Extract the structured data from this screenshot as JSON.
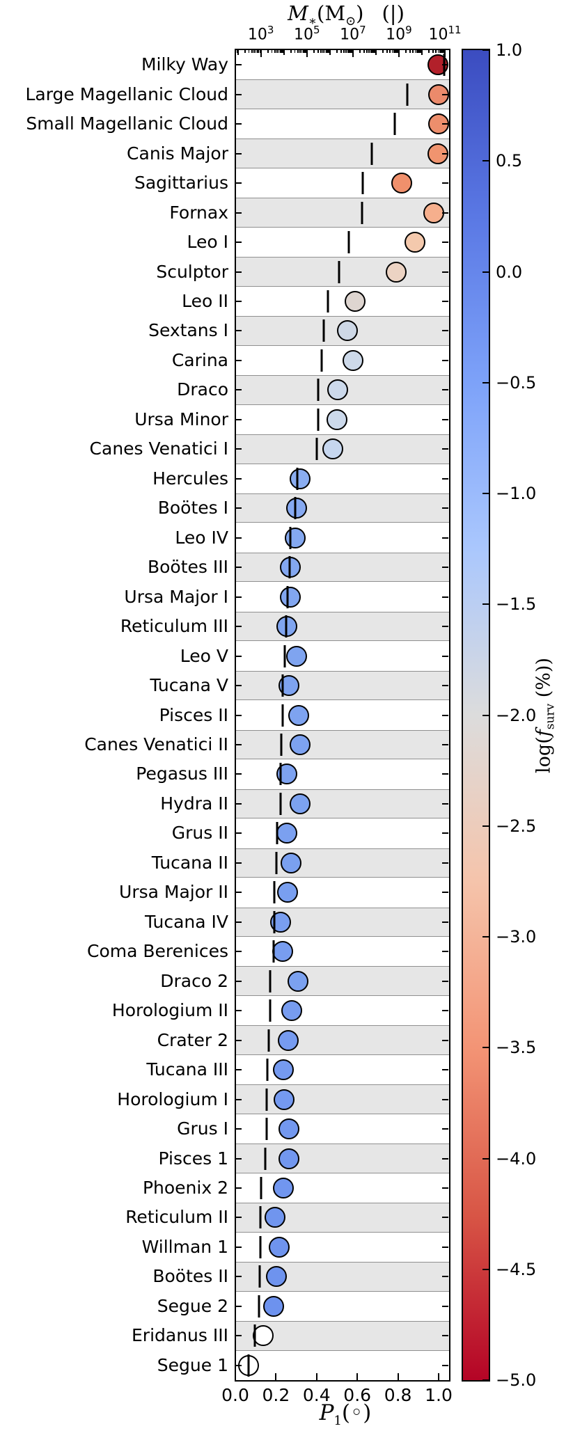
{
  "chart_data": {
    "type": "scatter",
    "description": "Horizontal category plot of 45 Milky Way satellite galaxies: vertical tick = stellar mass M* (top log axis), circle = P1 (bottom axis), circle color = log survival fraction (colorbar).",
    "x_top": {
      "title": {
        "m": "M",
        "sub": "∗",
        "open": "(M",
        "sun": "⊙",
        "close": ")",
        "legend": "(|)"
      },
      "ticks": [
        {
          "base": "10",
          "exp": "3",
          "log": 3
        },
        {
          "base": "10",
          "exp": "5",
          "log": 5
        },
        {
          "base": "10",
          "exp": "7",
          "log": 7
        },
        {
          "base": "10",
          "exp": "9",
          "log": 9
        },
        {
          "base": "10",
          "exp": "11",
          "log": 11
        }
      ],
      "range_log": [
        1.89,
        11.15
      ]
    },
    "x_bottom": {
      "title": {
        "p": "P",
        "sub": "1",
        "paren": "(◦)"
      },
      "ticks": [
        "0.0",
        "0.2",
        "0.4",
        "0.6",
        "0.8",
        "1.0"
      ],
      "range": [
        0,
        1.048
      ]
    },
    "colorbar": {
      "label": {
        "pre": "log(",
        "f": "f",
        "sub": "surv",
        "post": " (%))"
      },
      "ticks": [
        "1.0",
        "0.5",
        "0.0",
        "−0.5",
        "−1.0",
        "−1.5",
        "−2.0",
        "−2.5",
        "−3.0",
        "−3.5",
        "−4.0",
        "−4.5",
        "−5.0"
      ],
      "range": [
        1.0,
        -5.0
      ],
      "gradient": [
        "#3b4cc0",
        "#5a78e4",
        "#7da2f9",
        "#aac7fd",
        "#dcdcdc",
        "#f5c4ab",
        "#f39475",
        "#d85646",
        "#b40426"
      ]
    },
    "style": {
      "band_color": "#e6e6e6",
      "marker_edge": "#000000",
      "spine_color": "#000000"
    },
    "rows": [
      {
        "name": "Milky Way",
        "mstar_log": 10.98,
        "p1": 0.997,
        "color": "#b2202a"
      },
      {
        "name": "Large Magellanic Cloud",
        "mstar_log": 9.35,
        "p1": 1.0,
        "color": "#eb8a6b"
      },
      {
        "name": "Small Magellanic Cloud",
        "mstar_log": 8.83,
        "p1": 1.0,
        "color": "#ed8e6c"
      },
      {
        "name": "Canis Major",
        "mstar_log": 7.83,
        "p1": 0.995,
        "color": "#f0946f"
      },
      {
        "name": "Sagittarius",
        "mstar_log": 7.44,
        "p1": 0.82,
        "color": "#f0906c"
      },
      {
        "name": "Fornax",
        "mstar_log": 7.41,
        "p1": 0.975,
        "color": "#f6af8d"
      },
      {
        "name": "Leo I",
        "mstar_log": 6.83,
        "p1": 0.885,
        "color": "#f4c9ad"
      },
      {
        "name": "Sculptor",
        "mstar_log": 6.41,
        "p1": 0.79,
        "color": "#ecd3c3"
      },
      {
        "name": "Leo II",
        "mstar_log": 5.92,
        "p1": 0.59,
        "color": "#ded5d0"
      },
      {
        "name": "Sextans I",
        "mstar_log": 5.74,
        "p1": 0.55,
        "color": "#ced8e6"
      },
      {
        "name": "Carina",
        "mstar_log": 5.65,
        "p1": 0.58,
        "color": "#cdd9e9"
      },
      {
        "name": "Draco",
        "mstar_log": 5.5,
        "p1": 0.505,
        "color": "#ccd9eb"
      },
      {
        "name": "Ursa Minor",
        "mstar_log": 5.5,
        "p1": 0.5,
        "color": "#ccd9eb"
      },
      {
        "name": "Canes Venatici I",
        "mstar_log": 5.44,
        "p1": 0.48,
        "color": "#c6d6ee"
      },
      {
        "name": "Hercules",
        "mstar_log": 4.59,
        "p1": 0.32,
        "color": "#8aadf1"
      },
      {
        "name": "Boötes I",
        "mstar_log": 4.5,
        "p1": 0.3,
        "color": "#86a9f1"
      },
      {
        "name": "Leo IV",
        "mstar_log": 4.29,
        "p1": 0.295,
        "color": "#84a8f0"
      },
      {
        "name": "Boötes III",
        "mstar_log": 4.26,
        "p1": 0.27,
        "color": "#83a7f0"
      },
      {
        "name": "Ursa Major I",
        "mstar_log": 4.17,
        "p1": 0.27,
        "color": "#82a6f0"
      },
      {
        "name": "Reticulum III",
        "mstar_log": 4.11,
        "p1": 0.255,
        "color": "#80a5f0"
      },
      {
        "name": "Leo V",
        "mstar_log": 4.05,
        "p1": 0.3,
        "color": "#7fa4f0"
      },
      {
        "name": "Tucana V",
        "mstar_log": 3.95,
        "p1": 0.265,
        "color": "#7ea3f0"
      },
      {
        "name": "Pisces II",
        "mstar_log": 3.95,
        "p1": 0.31,
        "color": "#7ea3f0"
      },
      {
        "name": "Canes Venatici II",
        "mstar_log": 3.89,
        "p1": 0.32,
        "color": "#7da2f0"
      },
      {
        "name": "Pegasus III",
        "mstar_log": 3.86,
        "p1": 0.253,
        "color": "#7da2f0"
      },
      {
        "name": "Hydra II",
        "mstar_log": 3.85,
        "p1": 0.32,
        "color": "#7ca2f0"
      },
      {
        "name": "Grus II",
        "mstar_log": 3.71,
        "p1": 0.253,
        "color": "#7ba0f0"
      },
      {
        "name": "Tucana II",
        "mstar_log": 3.68,
        "p1": 0.274,
        "color": "#7aa0f0"
      },
      {
        "name": "Ursa Major II",
        "mstar_log": 3.59,
        "p1": 0.257,
        "color": "#799ff0"
      },
      {
        "name": "Tucana IV",
        "mstar_log": 3.59,
        "p1": 0.222,
        "color": "#799ef0"
      },
      {
        "name": "Coma Berenices",
        "mstar_log": 3.56,
        "p1": 0.233,
        "color": "#789df0"
      },
      {
        "name": "Draco 2",
        "mstar_log": 3.41,
        "p1": 0.308,
        "color": "#7ba1f0"
      },
      {
        "name": "Horologium II",
        "mstar_log": 3.41,
        "p1": 0.277,
        "color": "#779cf0"
      },
      {
        "name": "Crater 2",
        "mstar_log": 3.34,
        "p1": 0.26,
        "color": "#769bf0"
      },
      {
        "name": "Tucana III",
        "mstar_log": 3.29,
        "p1": 0.236,
        "color": "#759af0"
      },
      {
        "name": "Horologium I",
        "mstar_log": 3.26,
        "p1": 0.239,
        "color": "#7499f0"
      },
      {
        "name": "Grus I",
        "mstar_log": 3.26,
        "p1": 0.264,
        "color": "#7398ef"
      },
      {
        "name": "Pisces 1",
        "mstar_log": 3.19,
        "p1": 0.264,
        "color": "#7297ef"
      },
      {
        "name": "Phoenix 2",
        "mstar_log": 3.02,
        "p1": 0.236,
        "color": "#7196ef"
      },
      {
        "name": "Reticulum II",
        "mstar_log": 2.98,
        "p1": 0.195,
        "color": "#7095ee"
      },
      {
        "name": "Willman 1",
        "mstar_log": 2.98,
        "p1": 0.215,
        "color": "#6f94ee"
      },
      {
        "name": "Boötes II",
        "mstar_log": 2.95,
        "p1": 0.201,
        "color": "#6e93ee"
      },
      {
        "name": "Segue 2",
        "mstar_log": 2.92,
        "p1": 0.187,
        "color": "#6d92ee"
      },
      {
        "name": "Eridanus III",
        "mstar_log": 2.74,
        "p1": 0.136,
        "color": "#ffffff"
      },
      {
        "name": "Segue 1",
        "mstar_log": 2.46,
        "p1": 0.064,
        "color": "#ffffff"
      }
    ]
  }
}
